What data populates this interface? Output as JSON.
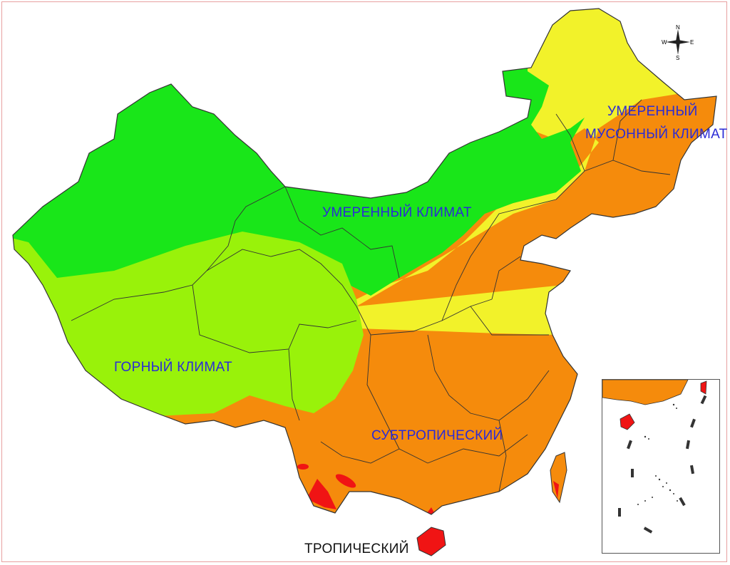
{
  "map": {
    "zones": {
      "temperate_monsoon": {
        "line1": "УМЕРЕННЫЙ",
        "line2": "МУСОННЫЙ КЛИМАТ",
        "color": "#f2f22a"
      },
      "temperate": {
        "label": "УМЕРЕННЫЙ КЛИМАТ",
        "color": "#19e619"
      },
      "mountain": {
        "label": "ГОРНЫЙ КЛИМАТ",
        "color": "#99f20a"
      },
      "subtropical": {
        "label": "СУБТРОПИЧЕСКИЙ",
        "color": "#f58b0c"
      },
      "tropical": {
        "label": "ТРОПИЧЕСКИЙ",
        "color": "#f01414"
      }
    },
    "label_colors": {
      "zone_text": "#2b2bd6",
      "tropical_text": "#111111"
    },
    "compass": {
      "north": "N",
      "south": "S",
      "east": "E",
      "west": "W"
    }
  }
}
